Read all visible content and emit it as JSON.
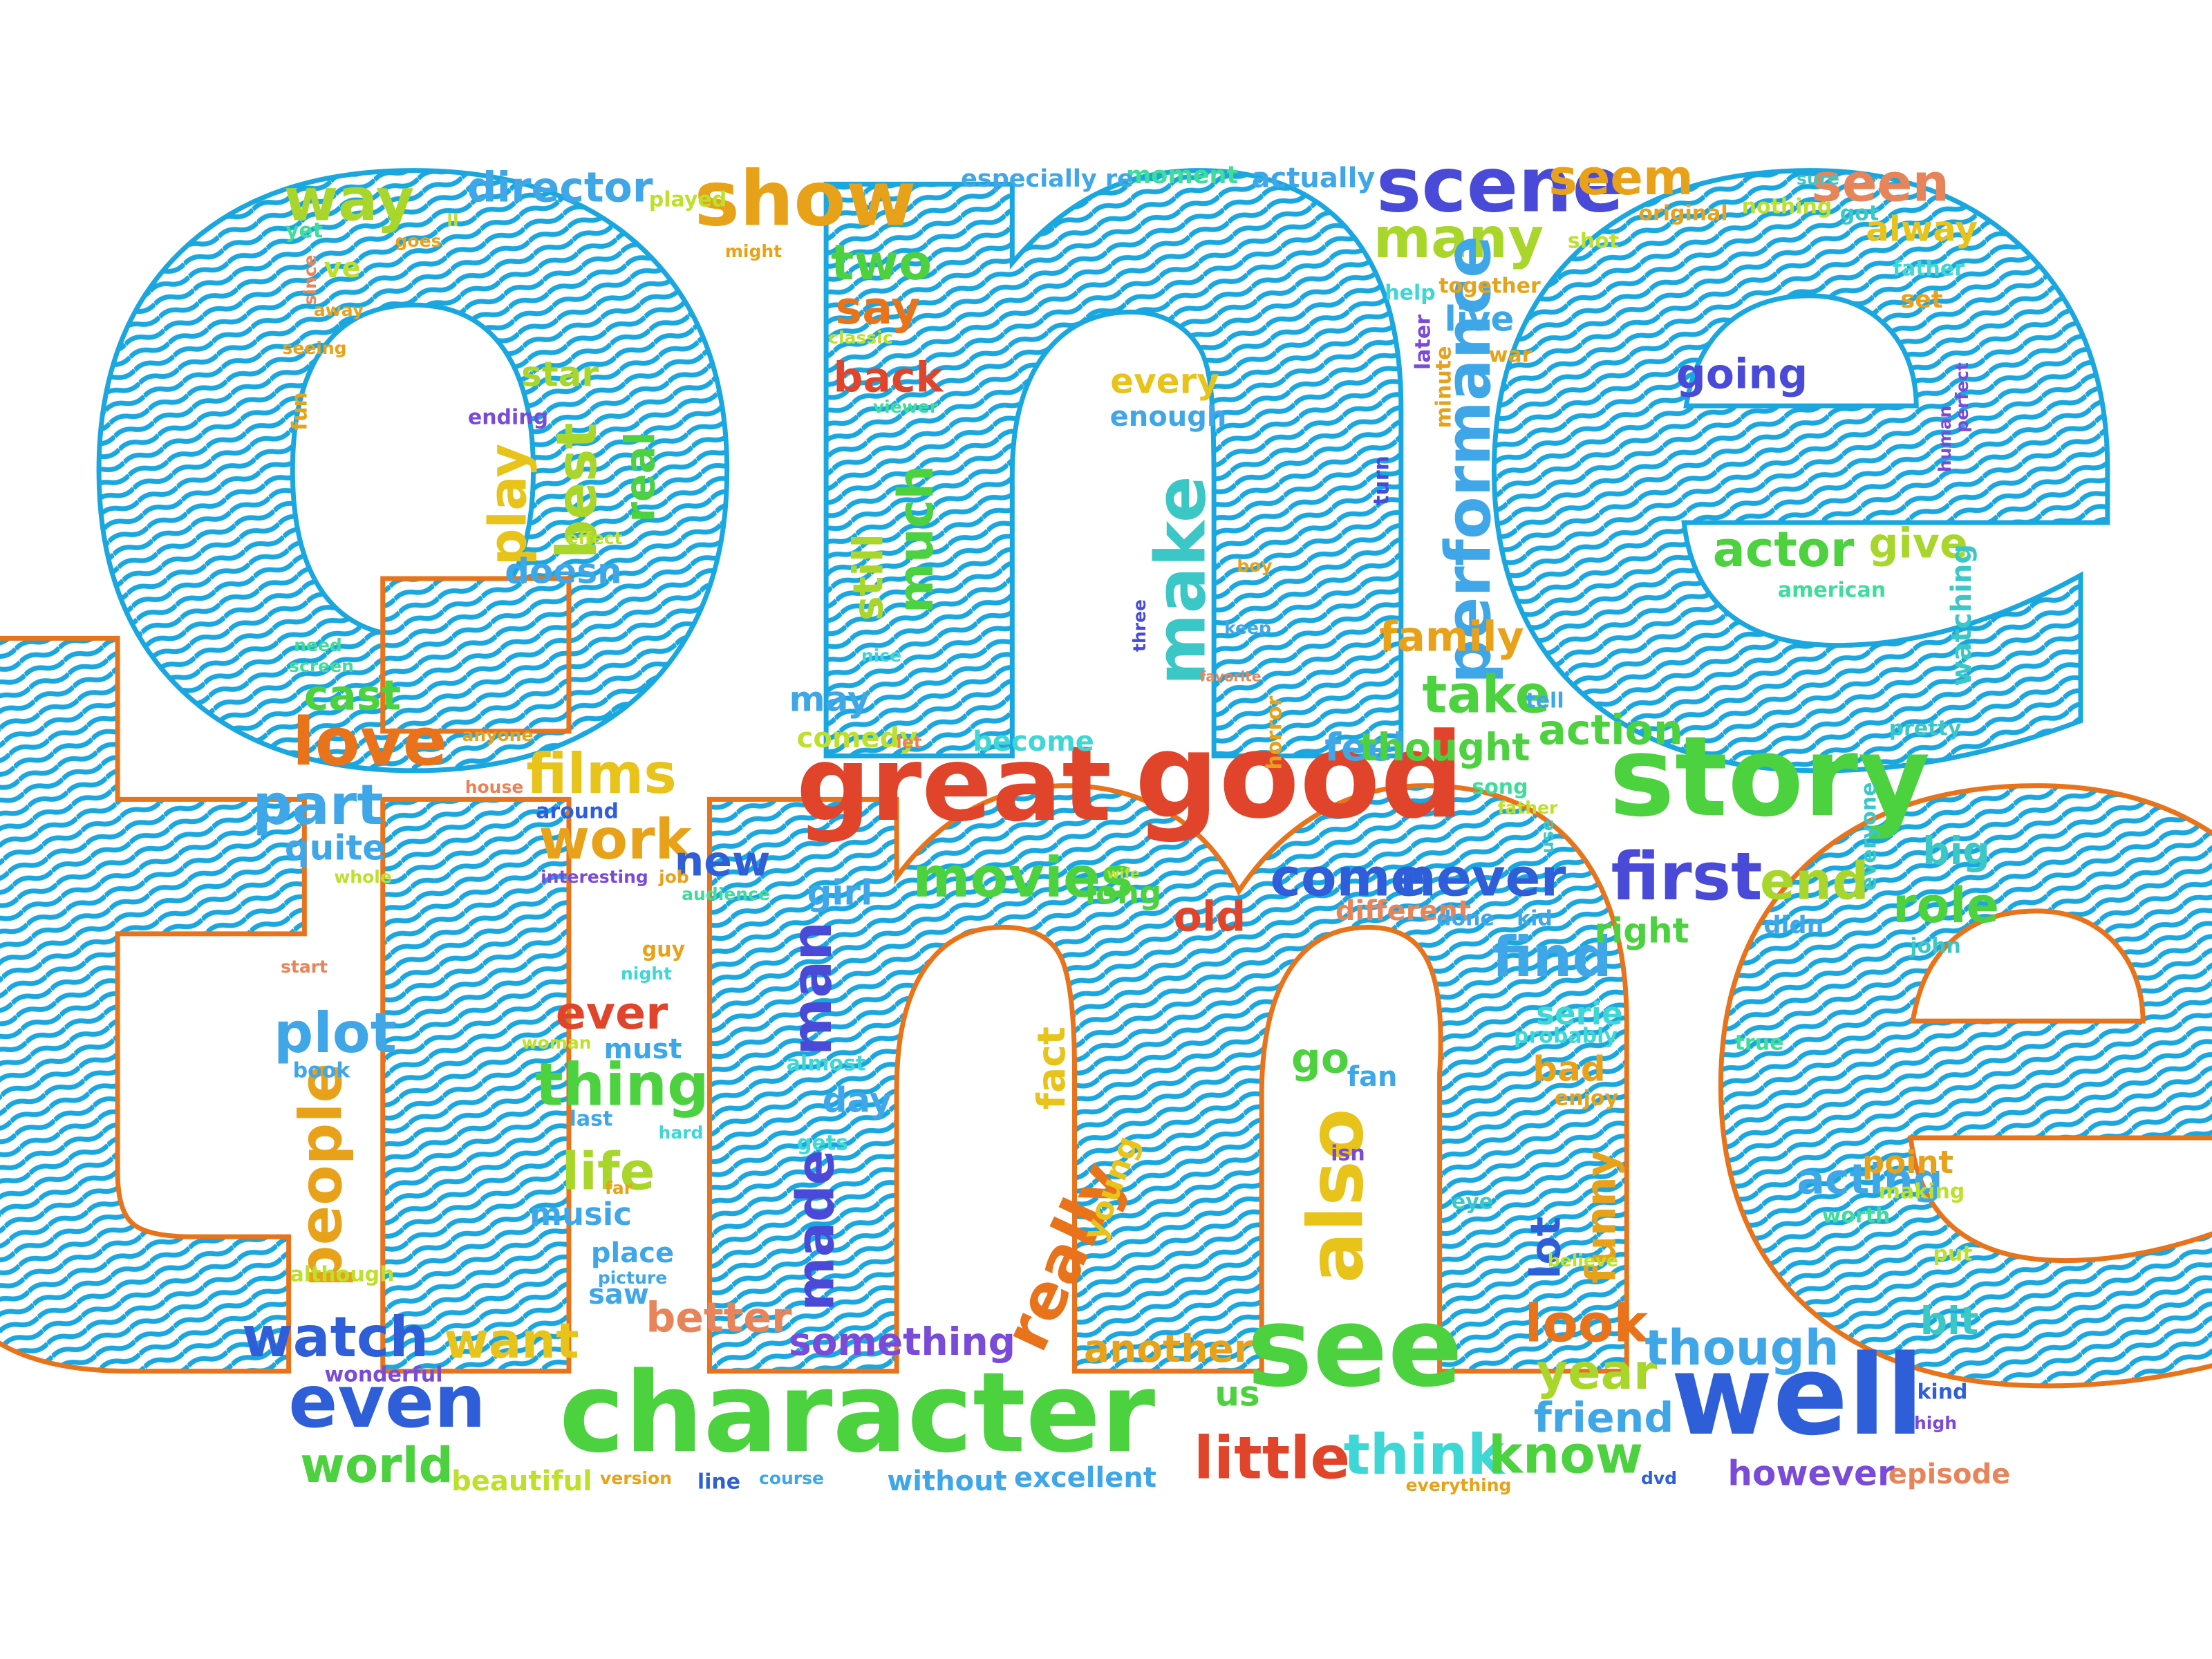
{
  "palette": {
    "blue": "#1aa7e0",
    "orange": "#e8731a",
    "red": "#e0452b",
    "green": "#4cd13f",
    "lime": "#a8d62a",
    "yellow": "#e8c31a",
    "teal": "#3cc7c7",
    "indigo": "#4a4ad8",
    "royal": "#2f5fd8",
    "sky": "#3fa7e8",
    "cyan": "#3fd6d6",
    "mint": "#3fdc9a",
    "violet": "#7a4ad8",
    "amber": "#e8a21a",
    "salmon": "#e8845a",
    "chartreuse": "#bde02a",
    "gold": "#e8b12f"
  },
  "words": [
    {
      "text": "one",
      "color": "blue",
      "size": 1500,
      "class": "giant"
    },
    {
      "text": "time",
      "color": "orange",
      "size": 1500,
      "class": "giant"
    },
    {
      "text": "great",
      "color": "red"
    },
    {
      "text": "good",
      "color": "red"
    },
    {
      "text": "story",
      "color": "green"
    },
    {
      "text": "character",
      "color": "green"
    },
    {
      "text": "see",
      "color": "green"
    },
    {
      "text": "well",
      "color": "royal"
    },
    {
      "text": "even",
      "color": "royal"
    },
    {
      "text": "scene",
      "color": "indigo"
    },
    {
      "text": "show",
      "color": "amber"
    },
    {
      "text": "seen",
      "color": "salmon"
    },
    {
      "text": "seem",
      "color": "amber"
    },
    {
      "text": "way",
      "color": "lime"
    },
    {
      "text": "director",
      "color": "sky"
    },
    {
      "text": "two",
      "color": "green"
    },
    {
      "text": "many",
      "color": "lime"
    },
    {
      "text": "say",
      "color": "orange"
    },
    {
      "text": "back",
      "color": "red"
    },
    {
      "text": "best",
      "color": "lime"
    },
    {
      "text": "play",
      "color": "yellow"
    },
    {
      "text": "real",
      "color": "green"
    },
    {
      "text": "make",
      "color": "teal"
    },
    {
      "text": "still",
      "color": "lime"
    },
    {
      "text": "much",
      "color": "green"
    },
    {
      "text": "performance",
      "color": "sky"
    },
    {
      "text": "actor",
      "color": "green"
    },
    {
      "text": "give",
      "color": "lime"
    },
    {
      "text": "going",
      "color": "indigo"
    },
    {
      "text": "films",
      "color": "yellow"
    },
    {
      "text": "work",
      "color": "amber"
    },
    {
      "text": "new",
      "color": "royal"
    },
    {
      "text": "movies",
      "color": "green"
    },
    {
      "text": "come",
      "color": "royal"
    },
    {
      "text": "never",
      "color": "royal"
    },
    {
      "text": "first",
      "color": "indigo"
    },
    {
      "text": "end",
      "color": "lime"
    },
    {
      "text": "role",
      "color": "green"
    },
    {
      "text": "love",
      "color": "orange"
    },
    {
      "text": "part",
      "color": "sky"
    },
    {
      "text": "cast",
      "color": "green"
    },
    {
      "text": "plot",
      "color": "sky"
    },
    {
      "text": "ever",
      "color": "red"
    },
    {
      "text": "thing",
      "color": "green"
    },
    {
      "text": "life",
      "color": "lime"
    },
    {
      "text": "people",
      "color": "amber"
    },
    {
      "text": "watch",
      "color": "royal"
    },
    {
      "text": "want",
      "color": "yellow"
    },
    {
      "text": "world",
      "color": "green"
    },
    {
      "text": "little",
      "color": "red"
    },
    {
      "text": "think",
      "color": "cyan"
    },
    {
      "text": "know",
      "color": "green"
    },
    {
      "text": "year",
      "color": "lime"
    },
    {
      "text": "look",
      "color": "orange"
    },
    {
      "text": "though",
      "color": "sky"
    },
    {
      "text": "find",
      "color": "sky"
    },
    {
      "text": "take",
      "color": "green"
    },
    {
      "text": "family",
      "color": "amber"
    },
    {
      "text": "action",
      "color": "green"
    },
    {
      "text": "man",
      "color": "indigo"
    },
    {
      "text": "made",
      "color": "indigo"
    },
    {
      "text": "really",
      "color": "orange"
    },
    {
      "text": "also",
      "color": "yellow"
    },
    {
      "text": "better",
      "color": "salmon"
    },
    {
      "text": "something",
      "color": "violet"
    },
    {
      "text": "another",
      "color": "amber"
    },
    {
      "text": "lot",
      "color": "royal"
    },
    {
      "text": "funny",
      "color": "amber"
    },
    {
      "text": "acting",
      "color": "sky"
    },
    {
      "text": "however",
      "color": "violet"
    },
    {
      "text": "episode",
      "color": "salmon"
    },
    {
      "text": "friend",
      "color": "sky"
    },
    {
      "text": "bit",
      "color": "teal"
    },
    {
      "text": "big",
      "color": "teal"
    },
    {
      "text": "star",
      "color": "lime"
    },
    {
      "text": "doesn",
      "color": "sky"
    },
    {
      "text": "every",
      "color": "yellow"
    },
    {
      "text": "enough",
      "color": "sky"
    },
    {
      "text": "live",
      "color": "sky"
    },
    {
      "text": "alway",
      "color": "yellow"
    },
    {
      "text": "feel",
      "color": "sky"
    },
    {
      "text": "thought",
      "color": "green"
    },
    {
      "text": "may",
      "color": "sky"
    },
    {
      "text": "become",
      "color": "cyan"
    },
    {
      "text": "comedy",
      "color": "chartreuse"
    },
    {
      "text": "girl",
      "color": "sky"
    },
    {
      "text": "long",
      "color": "green"
    },
    {
      "text": "old",
      "color": "red"
    },
    {
      "text": "different",
      "color": "salmon"
    },
    {
      "text": "right",
      "color": "green"
    },
    {
      "text": "serie",
      "color": "cyan"
    },
    {
      "text": "go",
      "color": "green"
    },
    {
      "text": "fan",
      "color": "sky"
    },
    {
      "text": "day",
      "color": "sky"
    },
    {
      "text": "fact",
      "color": "yellow"
    },
    {
      "text": "young",
      "color": "yellow"
    },
    {
      "text": "quite",
      "color": "sky"
    },
    {
      "text": "world",
      "color": "green"
    },
    {
      "text": "beautiful",
      "color": "chartreuse"
    },
    {
      "text": "excellent",
      "color": "sky"
    },
    {
      "text": "without",
      "color": "sky"
    },
    {
      "text": "point",
      "color": "amber"
    },
    {
      "text": "music",
      "color": "sky"
    },
    {
      "text": "place",
      "color": "sky"
    },
    {
      "text": "saw",
      "color": "sky"
    },
    {
      "text": "us",
      "color": "green"
    },
    {
      "text": "bad",
      "color": "amber"
    },
    {
      "text": "must",
      "color": "sky"
    },
    {
      "text": "ending",
      "color": "violet"
    },
    {
      "text": "moment",
      "color": "mint"
    },
    {
      "text": "actually",
      "color": "sky"
    },
    {
      "text": "especially re",
      "color": "sky"
    },
    {
      "text": "played",
      "color": "chartreuse"
    },
    {
      "text": "original",
      "color": "amber"
    },
    {
      "text": "nothing",
      "color": "chartreuse"
    },
    {
      "text": "got",
      "color": "teal"
    },
    {
      "text": "shot",
      "color": "chartreuse"
    },
    {
      "text": "together",
      "color": "amber"
    },
    {
      "text": "father",
      "color": "cyan"
    },
    {
      "text": "set",
      "color": "amber"
    },
    {
      "text": "help",
      "color": "cyan"
    },
    {
      "text": "war",
      "color": "amber"
    },
    {
      "text": "later",
      "color": "violet"
    },
    {
      "text": "minute",
      "color": "amber"
    },
    {
      "text": "turn",
      "color": "indigo"
    },
    {
      "text": "watching",
      "color": "teal"
    },
    {
      "text": "american",
      "color": "mint"
    },
    {
      "text": "tell",
      "color": "sky"
    },
    {
      "text": "pretty",
      "color": "teal"
    },
    {
      "text": "song",
      "color": "mint"
    },
    {
      "text": "use",
      "color": "teal"
    },
    {
      "text": "didn",
      "color": "sky"
    },
    {
      "text": "everyone",
      "color": "teal"
    },
    {
      "text": "john",
      "color": "teal"
    },
    {
      "text": "kid",
      "color": "sky"
    },
    {
      "text": "done",
      "color": "sky"
    },
    {
      "text": "probably",
      "color": "cyan"
    },
    {
      "text": "true",
      "color": "mint"
    },
    {
      "text": "enjoy",
      "color": "amber"
    },
    {
      "text": "isn",
      "color": "violet"
    },
    {
      "text": "eye",
      "color": "teal"
    },
    {
      "text": "making",
      "color": "chartreuse"
    },
    {
      "text": "worth",
      "color": "mint"
    },
    {
      "text": "put",
      "color": "chartreuse"
    },
    {
      "text": "kind",
      "color": "royal"
    },
    {
      "text": "high",
      "color": "violet"
    },
    {
      "text": "believe",
      "color": "chartreuse"
    },
    {
      "text": "everything",
      "color": "amber"
    },
    {
      "text": "dvd",
      "color": "royal"
    },
    {
      "text": "course",
      "color": "sky"
    },
    {
      "text": "line",
      "color": "royal"
    },
    {
      "text": "version",
      "color": "amber"
    },
    {
      "text": "wonderful",
      "color": "violet"
    },
    {
      "text": "although",
      "color": "chartreuse"
    },
    {
      "text": "picture",
      "color": "sky"
    },
    {
      "text": "far",
      "color": "amber"
    },
    {
      "text": "hard",
      "color": "cyan"
    },
    {
      "text": "last",
      "color": "sky"
    },
    {
      "text": "gets",
      "color": "cyan"
    },
    {
      "text": "almost",
      "color": "cyan"
    },
    {
      "text": "woman",
      "color": "chartreuse"
    },
    {
      "text": "book",
      "color": "sky"
    },
    {
      "text": "night",
      "color": "cyan"
    },
    {
      "text": "guy",
      "color": "amber"
    },
    {
      "text": "start",
      "color": "salmon"
    },
    {
      "text": "whole",
      "color": "chartreuse"
    },
    {
      "text": "interesting",
      "color": "violet"
    },
    {
      "text": "job",
      "color": "amber"
    },
    {
      "text": "audience",
      "color": "mint"
    },
    {
      "text": "around",
      "color": "royal"
    },
    {
      "text": "house",
      "color": "salmon"
    },
    {
      "text": "anyone",
      "color": "amber"
    },
    {
      "text": "let",
      "color": "salmon"
    },
    {
      "text": "horror",
      "color": "amber"
    },
    {
      "text": "favorite",
      "color": "salmon"
    },
    {
      "text": "keep",
      "color": "sky"
    },
    {
      "text": "three",
      "color": "indigo"
    },
    {
      "text": "boy",
      "color": "amber"
    },
    {
      "text": "nice",
      "color": "cyan"
    },
    {
      "text": "need",
      "color": "mint"
    },
    {
      "text": "screen",
      "color": "mint"
    },
    {
      "text": "fun",
      "color": "amber"
    },
    {
      "text": "seeing",
      "color": "amber"
    },
    {
      "text": "since",
      "color": "salmon"
    },
    {
      "text": "away",
      "color": "amber"
    },
    {
      "text": "yet",
      "color": "mint"
    },
    {
      "text": "ve",
      "color": "chartreuse"
    },
    {
      "text": "goes",
      "color": "amber"
    },
    {
      "text": "ll",
      "color": "chartreuse"
    },
    {
      "text": "might",
      "color": "amber"
    },
    {
      "text": "classic",
      "color": "chartreuse"
    },
    {
      "text": "viewer",
      "color": "mint"
    },
    {
      "text": "effect",
      "color": "chartreuse"
    },
    {
      "text": "human",
      "color": "violet"
    },
    {
      "text": "perfect",
      "color": "violet"
    },
    {
      "text": "sure",
      "color": "teal"
    },
    {
      "text": "wife",
      "color": "chartreuse"
    },
    {
      "text": "father",
      "color": "chartreuse"
    }
  ]
}
